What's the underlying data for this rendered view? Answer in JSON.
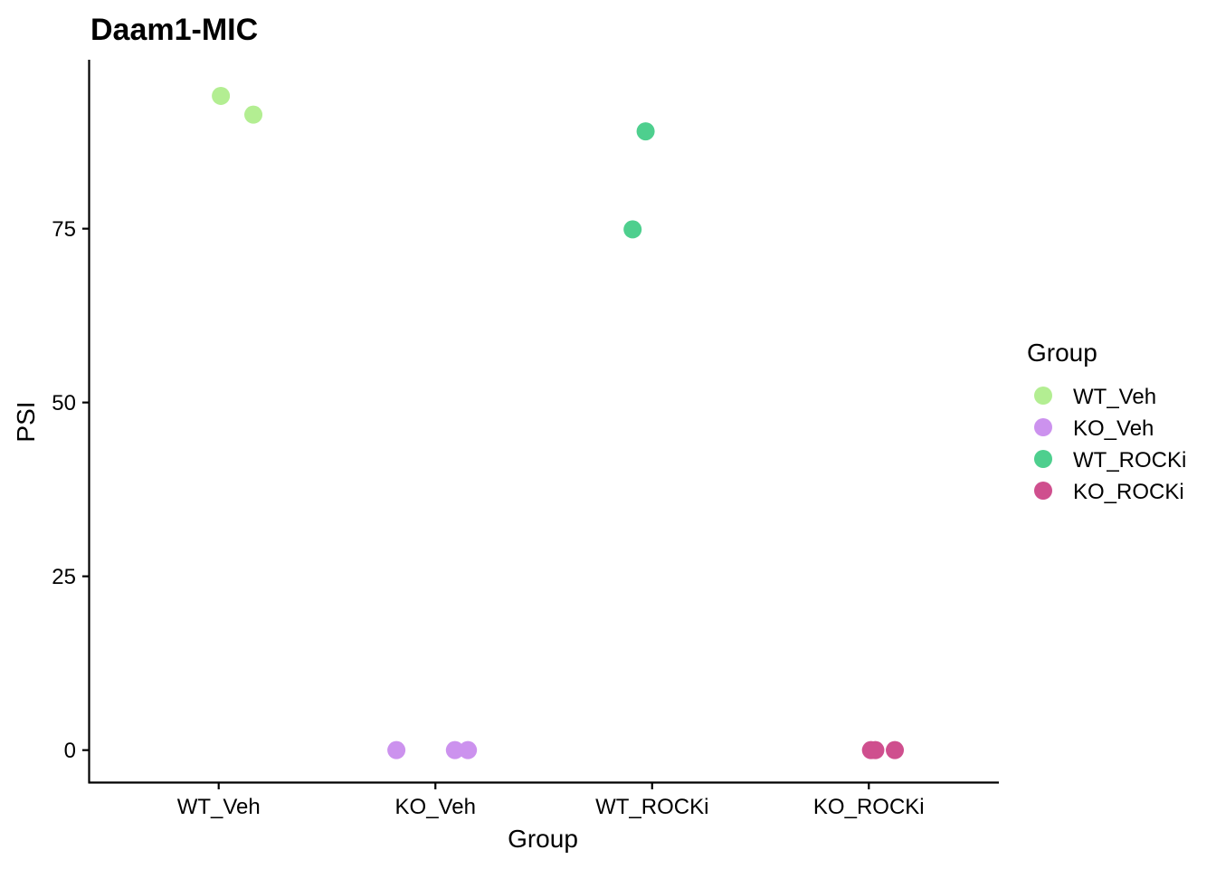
{
  "chart_data": {
    "type": "scatter",
    "title": "Daam1-MIC",
    "xlabel": "Group",
    "ylabel": "PSI",
    "categories": [
      "WT_Veh",
      "KO_Veh",
      "WT_ROCKi",
      "KO_ROCKi"
    ],
    "yticks": [
      "0",
      "25",
      "50",
      "75"
    ],
    "ylim": [
      -4.6,
      99.3
    ],
    "grid": false,
    "legend": {
      "title": "Group",
      "position": "right",
      "entries": [
        "WT_Veh",
        "KO_Veh",
        "WT_ROCKi",
        "KO_ROCKi"
      ]
    },
    "colors": {
      "WT_Veh": "#b3ee92",
      "KO_Veh": "#cc92ee",
      "WT_ROCKi": "#4ecf8e",
      "KO_ROCKi": "#cf4f8e"
    },
    "series": [
      {
        "name": "WT_Veh",
        "points": [
          {
            "x": "WT_Veh",
            "jitter": 0.01,
            "y": 94.1
          },
          {
            "x": "WT_Veh",
            "jitter": 0.16,
            "y": 91.4
          }
        ]
      },
      {
        "name": "KO_Veh",
        "points": [
          {
            "x": "KO_Veh",
            "jitter": -0.18,
            "y": 0
          },
          {
            "x": "KO_Veh",
            "jitter": 0.09,
            "y": 0
          },
          {
            "x": "KO_Veh",
            "jitter": 0.15,
            "y": 0
          }
        ]
      },
      {
        "name": "WT_ROCKi",
        "points": [
          {
            "x": "WT_ROCKi",
            "jitter": -0.09,
            "y": 74.9
          },
          {
            "x": "WT_ROCKi",
            "jitter": -0.03,
            "y": 89.0
          }
        ]
      },
      {
        "name": "KO_ROCKi",
        "points": [
          {
            "x": "KO_ROCKi",
            "jitter": 0.01,
            "y": 0
          },
          {
            "x": "KO_ROCKi",
            "jitter": 0.03,
            "y": 0
          },
          {
            "x": "KO_ROCKi",
            "jitter": 0.12,
            "y": 0
          }
        ]
      }
    ]
  }
}
